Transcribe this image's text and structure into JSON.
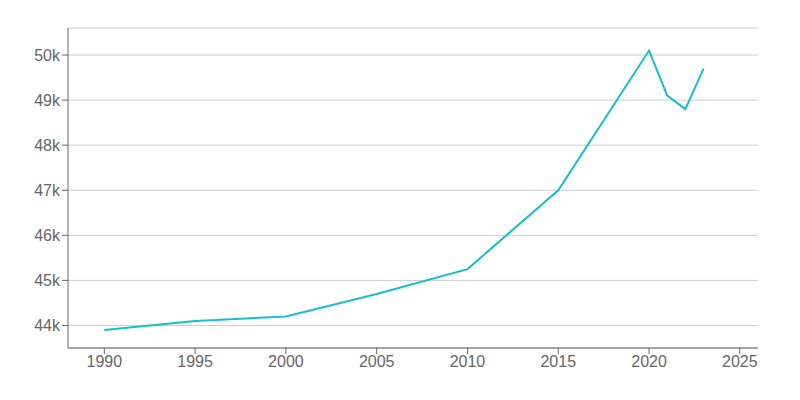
{
  "chart_data": {
    "type": "line",
    "x": [
      1990,
      1995,
      2000,
      2005,
      2010,
      2015,
      2020,
      2021,
      2022,
      2023
    ],
    "values": [
      43900,
      44100,
      44200,
      44700,
      45250,
      47000,
      50100,
      49100,
      48800,
      49700
    ],
    "color": "#17becf",
    "xlim": [
      1988,
      2026
    ],
    "ylim": [
      43500,
      50600
    ],
    "xticks": [
      1990,
      1995,
      2000,
      2005,
      2010,
      2015,
      2020,
      2025
    ],
    "yticks": [
      {
        "value": 44000,
        "label": "44k"
      },
      {
        "value": 45000,
        "label": "45k"
      },
      {
        "value": 46000,
        "label": "46k"
      },
      {
        "value": 47000,
        "label": "47k"
      },
      {
        "value": 48000,
        "label": "48k"
      },
      {
        "value": 49000,
        "label": "49k"
      },
      {
        "value": 50000,
        "label": "50k"
      }
    ],
    "grid": true
  }
}
